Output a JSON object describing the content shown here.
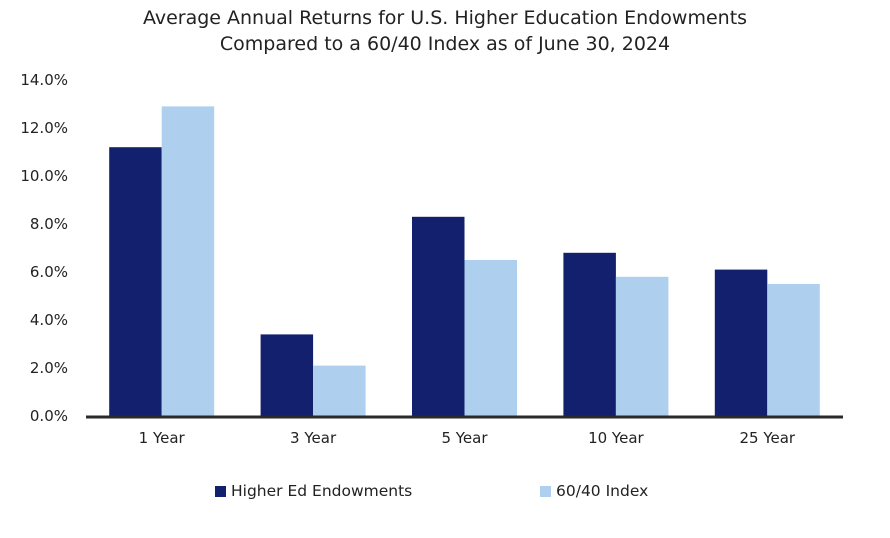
{
  "chart_data": {
    "type": "bar",
    "title": "Average Annual Returns for U.S. Higher Education Endowments",
    "subtitle": "Compared to a 60/40 Index as of June 30, 2024",
    "xlabel": "",
    "ylabel": "",
    "categories": [
      "1 Year",
      "3 Year",
      "5 Year",
      "10 Year",
      "25 Year"
    ],
    "series": [
      {
        "name": "Higher Ed Endowments",
        "color": "#13206d",
        "values": [
          11.2,
          3.4,
          8.3,
          6.8,
          6.1
        ]
      },
      {
        "name": "60/40 Index",
        "color": "#aed0ee",
        "values": [
          12.9,
          2.1,
          6.5,
          5.8,
          5.5
        ]
      }
    ],
    "ylim": [
      0,
      14
    ],
    "yticks": [
      0,
      2,
      4,
      6,
      8,
      10,
      12,
      14
    ],
    "ytick_labels": [
      "0.0%",
      "2.0%",
      "4.0%",
      "6.0%",
      "8.0%",
      "10.0%",
      "12.0%",
      "14.0%"
    ],
    "grid": false,
    "legend_position": "bottom"
  }
}
